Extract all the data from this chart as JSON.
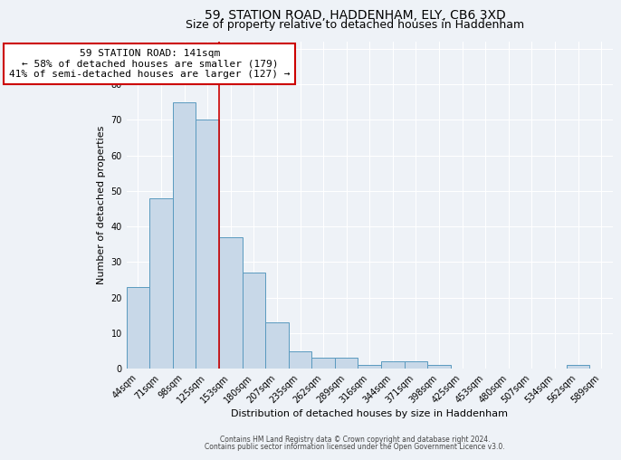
{
  "title1": "59, STATION ROAD, HADDENHAM, ELY, CB6 3XD",
  "title2": "Size of property relative to detached houses in Haddenham",
  "xlabel": "Distribution of detached houses by size in Haddenham",
  "ylabel": "Number of detached properties",
  "categories": [
    "44sqm",
    "71sqm",
    "98sqm",
    "125sqm",
    "153sqm",
    "180sqm",
    "207sqm",
    "235sqm",
    "262sqm",
    "289sqm",
    "316sqm",
    "344sqm",
    "371sqm",
    "398sqm",
    "425sqm",
    "453sqm",
    "480sqm",
    "507sqm",
    "534sqm",
    "562sqm",
    "589sqm"
  ],
  "values": [
    23,
    48,
    75,
    70,
    37,
    27,
    13,
    5,
    3,
    3,
    1,
    2,
    2,
    1,
    0,
    0,
    0,
    0,
    0,
    1,
    0
  ],
  "bar_color": "#c8d8e8",
  "bar_edge_color": "#5a9abf",
  "annotation_text1": "59 STATION ROAD: 141sqm",
  "annotation_text2": "← 58% of detached houses are smaller (179)",
  "annotation_text3": "41% of semi-detached houses are larger (127) →",
  "annotation_box_color": "white",
  "annotation_box_edge_color": "#cc0000",
  "vline_color": "#cc0000",
  "background_color": "#eef2f7",
  "footer_text1": "Contains HM Land Registry data © Crown copyright and database right 2024.",
  "footer_text2": "Contains public sector information licensed under the Open Government Licence v3.0.",
  "ylim": [
    0,
    92
  ],
  "title1_fontsize": 10,
  "title2_fontsize": 9,
  "ylabel_fontsize": 8,
  "xlabel_fontsize": 8,
  "tick_fontsize": 7,
  "annot_fontsize": 8,
  "vline_x_data": 3.5
}
